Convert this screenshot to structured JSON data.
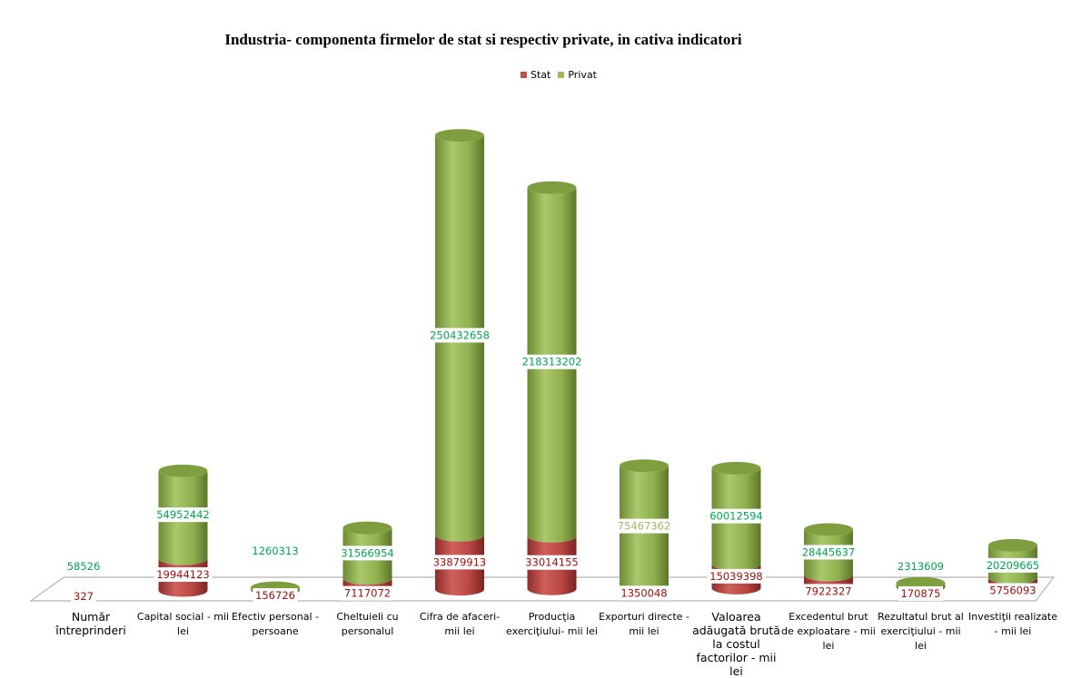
{
  "chart_data": {
    "type": "bar",
    "stacked": true,
    "style": "3d-cylinder",
    "title": "Industria- componenta firmelor de stat si respectiv private, in cativa indicatori",
    "legend_position": "top",
    "colors": {
      "stat": "#c0504d",
      "privat": "#9bbb59",
      "privat_label": "#00a651",
      "stat_label": "#a01010"
    },
    "categories": [
      "Număr întreprinderi",
      "Capital social - mii lei",
      "Efectiv personal - persoane",
      "Cheltuieli cu personalul",
      "Cifra de afaceri- mii lei",
      "Producţia exerciţiului- mii lei",
      "Exporturi directe - mii lei",
      "Valoarea adăugată brută la costul factorilor - mii lei",
      "Excedentul brut de exploatare - mii lei",
      "Rezultatul brut al exerciţiului - mii lei",
      "Investiţii realizate  - mii lei"
    ],
    "series": [
      {
        "name": "Stat",
        "values": [
          327,
          19944123,
          156726,
          7117072,
          33879913,
          33014155,
          1350048,
          15039398,
          7922327,
          170875,
          5756093
        ]
      },
      {
        "name": "Privat",
        "values": [
          58526,
          54952442,
          1260313,
          31566954,
          250432658,
          218313202,
          75467362,
          60012594,
          28445637,
          2313609,
          20209665
        ]
      }
    ],
    "grid": false
  }
}
